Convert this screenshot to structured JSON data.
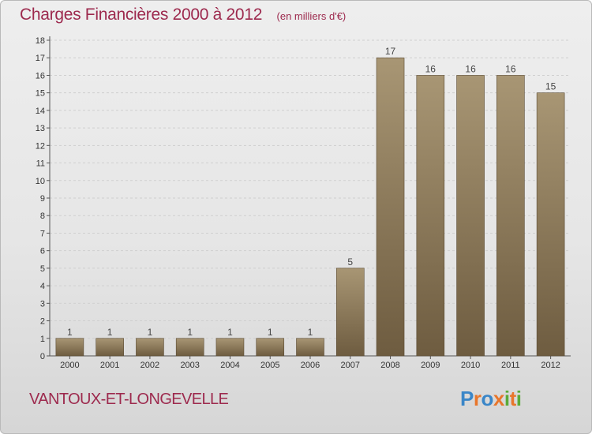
{
  "header": {
    "title": "Charges Financières 2000 à 2012",
    "subtitle": "(en milliers d'€)"
  },
  "commune": "VANTOUX-ET-LONGEVELLE",
  "logo": {
    "text": "Proxiti",
    "letter_colors": [
      "#3a86c8",
      "#e8762b",
      "#3a86c8",
      "#e8762b",
      "#5aaa38",
      "#e8762b",
      "#5aaa38"
    ]
  },
  "colors": {
    "bar_top": "#a89674",
    "bar_bottom": "#6e5c40",
    "bar_edge": "#5a4a32",
    "title": "#9d2a4e",
    "grid": "#cfcfcf",
    "axis": "#555555"
  },
  "chart_data": {
    "type": "bar",
    "categories": [
      "2000",
      "2001",
      "2002",
      "2003",
      "2004",
      "2005",
      "2006",
      "2007",
      "2008",
      "2009",
      "2010",
      "2011",
      "2012"
    ],
    "values": [
      1,
      1,
      1,
      1,
      1,
      1,
      1,
      5,
      17,
      16,
      16,
      16,
      15
    ],
    "title": "Charges Financières 2000 à 2012",
    "subtitle": "(en milliers d'€)",
    "xlabel": "",
    "ylabel": "",
    "ylim": [
      0,
      18
    ],
    "yticks": [
      0,
      1,
      2,
      3,
      4,
      5,
      6,
      7,
      8,
      9,
      10,
      11,
      12,
      13,
      14,
      15,
      16,
      17,
      18
    ],
    "grid": true,
    "data_labels": true
  }
}
